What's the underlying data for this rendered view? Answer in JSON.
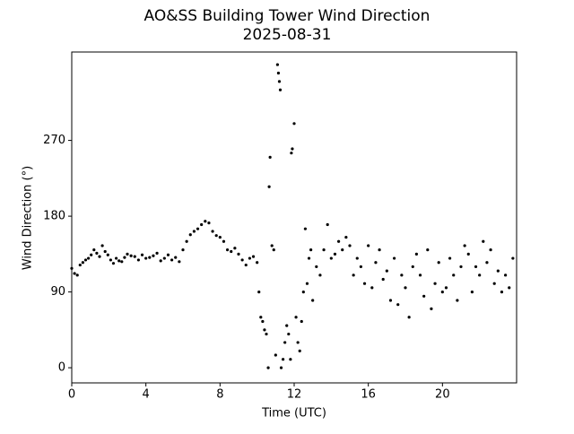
{
  "chart_data": {
    "type": "scatter",
    "title": "AO&SS Building Tower Wind Direction",
    "subtitle": "2025-08-31",
    "x_label": "Time (UTC)",
    "y_label": "Wind Direction (°)",
    "color": "#000000",
    "xlim": [
      0,
      24
    ],
    "xticks": [
      0,
      4,
      8,
      12,
      16,
      20
    ],
    "ylim": [
      -18,
      375
    ],
    "yticks": [
      0,
      90,
      180,
      270
    ],
    "x": [
      0.0,
      0.15,
      0.3,
      0.45,
      0.6,
      0.75,
      0.9,
      1.05,
      1.2,
      1.35,
      1.5,
      1.65,
      1.8,
      1.95,
      2.1,
      2.25,
      2.4,
      2.55,
      2.7,
      2.85,
      3.0,
      3.2,
      3.4,
      3.6,
      3.8,
      4.0,
      4.2,
      4.4,
      4.6,
      4.8,
      5.0,
      5.2,
      5.4,
      5.6,
      5.8,
      6.0,
      6.2,
      6.4,
      6.6,
      6.8,
      7.0,
      7.2,
      7.4,
      7.6,
      7.8,
      8.0,
      8.2,
      8.4,
      8.6,
      8.8,
      9.0,
      9.2,
      9.4,
      9.6,
      9.8,
      10.0,
      10.1,
      10.2,
      10.3,
      10.4,
      10.5,
      10.6,
      10.65,
      10.7,
      10.8,
      10.9,
      11.0,
      11.1,
      11.15,
      11.2,
      11.25,
      11.3,
      11.4,
      11.5,
      11.6,
      11.7,
      11.8,
      11.85,
      11.9,
      12.0,
      12.1,
      12.2,
      12.3,
      12.4,
      12.5,
      12.6,
      12.7,
      12.8,
      12.9,
      13.0,
      13.2,
      13.4,
      13.6,
      13.8,
      14.0,
      14.2,
      14.4,
      14.6,
      14.8,
      15.0,
      15.2,
      15.4,
      15.6,
      15.8,
      16.0,
      16.2,
      16.4,
      16.6,
      16.8,
      17.0,
      17.2,
      17.4,
      17.6,
      17.8,
      18.0,
      18.2,
      18.4,
      18.6,
      18.8,
      19.0,
      19.2,
      19.4,
      19.6,
      19.8,
      20.0,
      20.2,
      20.4,
      20.6,
      20.8,
      21.0,
      21.2,
      21.4,
      21.6,
      21.8,
      22.0,
      22.2,
      22.4,
      22.6,
      22.8,
      23.0,
      23.2,
      23.4,
      23.6,
      23.8
    ],
    "values": [
      118,
      112,
      110,
      122,
      125,
      128,
      130,
      134,
      140,
      136,
      132,
      145,
      138,
      134,
      128,
      124,
      130,
      127,
      126,
      131,
      135,
      133,
      132,
      128,
      134,
      130,
      131,
      133,
      136,
      127,
      130,
      134,
      128,
      131,
      126,
      140,
      150,
      158,
      162,
      165,
      170,
      174,
      172,
      162,
      157,
      155,
      150,
      140,
      138,
      142,
      135,
      128,
      122,
      130,
      132,
      125,
      90,
      60,
      55,
      45,
      40,
      0,
      215,
      250,
      145,
      140,
      15,
      360,
      350,
      340,
      330,
      0,
      10,
      30,
      50,
      40,
      10,
      255,
      260,
      290,
      60,
      30,
      20,
      55,
      90,
      165,
      100,
      130,
      140,
      80,
      120,
      110,
      140,
      170,
      130,
      135,
      150,
      140,
      155,
      145,
      110,
      130,
      120,
      100,
      145,
      95,
      125,
      140,
      105,
      115,
      80,
      130,
      75,
      110,
      95,
      60,
      120,
      135,
      110,
      85,
      140,
      70,
      100,
      125,
      90,
      95,
      130,
      110,
      80,
      120,
      145,
      135,
      90,
      120,
      110,
      150,
      125,
      140,
      100,
      115,
      90,
      110,
      95,
      130
    ]
  }
}
